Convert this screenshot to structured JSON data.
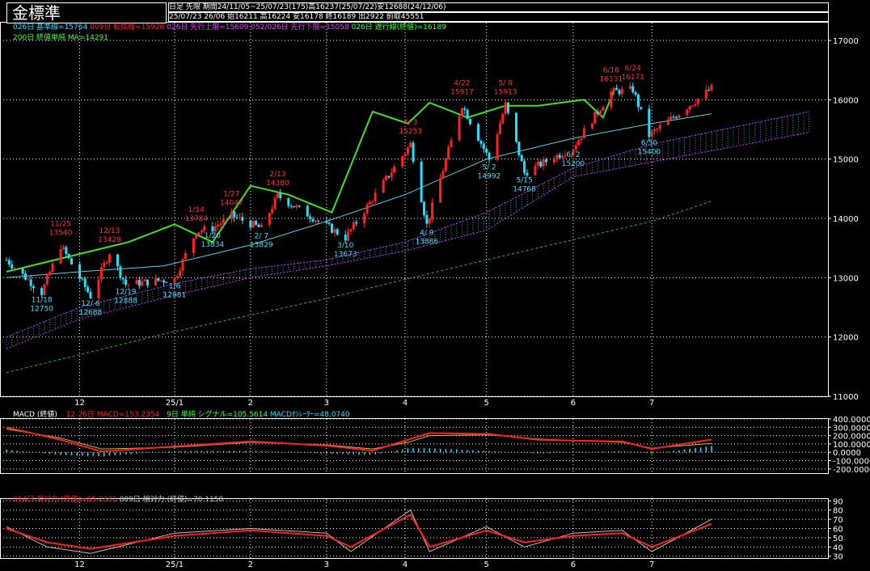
{
  "header": {
    "title": "金標準",
    "period_line": "日足  先限  期間24/11/05~25/07/23(175)高16237(25/07/22)安12688(24/12/06)",
    "quote_line": "25/07/23 26/06 始16211 高16224 安16178 終16189 出2922 前取45551"
  },
  "legend": {
    "base": "026日 基準線=15764",
    "conversion": "009日 転換線=15928",
    "lead1": "026日 先行上限=15609",
    "lead2": "052/026日 先行下限=15058",
    "lag": "026日 遅行線(終値)=16189",
    "ma": "200日 終値単純 MA=14291"
  },
  "macd_legend": {
    "title": "MACD (終値)",
    "macd": "12-26日 MACD=153.2354",
    "signal": "9日 単純 シグナル=105.5614",
    "osc": "MACDｵｼﾚｰﾀｰ=48.0740"
  },
  "rsi_legend": {
    "rsi14": "014日 相対力 (終値)=65.2331",
    "rsi9": "009日 相対力 (終値)=70.1158"
  },
  "x_labels": [
    "12",
    "25/1",
    "2",
    "3",
    "4",
    "5",
    "6",
    "7"
  ],
  "price_ticks": [
    "17000",
    "16000",
    "15000",
    "14000",
    "13000",
    "12000",
    "11000"
  ],
  "macd_ticks": [
    "400.0000",
    "300.0000",
    "200.0000",
    "100.0000",
    "0.0000",
    "-100.0000",
    "-200.0000"
  ],
  "rsi_ticks": [
    "90",
    "80",
    "70",
    "60",
    "50",
    "40",
    "30"
  ],
  "colors": {
    "up": "#ff2020",
    "down": "#20e0ff",
    "lag": "#40e020",
    "ma": "#20c020",
    "base": "#60d0e0",
    "conv": "#c02020",
    "cloud_edge": "#c040ff",
    "cloud_fill": "#40a0c0",
    "macd": "#ff2020",
    "signal": "#c0c040",
    "hist": "#20e0ff",
    "rsi14": "#ff2020",
    "rsi9": "#c0c0c0"
  },
  "chart_data": [
    {
      "type": "candlestick",
      "title": "金標準",
      "ylim": [
        11000,
        17300
      ],
      "x_start": "2024-11-05",
      "x_end": "2025-07-23",
      "x_ticks": [
        "2024-12-02",
        "2025-01-06",
        "2025-02-03",
        "2025-03-03",
        "2025-04-01",
        "2025-05-01",
        "2025-06-02",
        "2025-07-01"
      ],
      "y_ticks": [
        17000,
        16000,
        15000,
        14000,
        13000,
        12000,
        11000
      ],
      "annotations": [
        {
          "date": "2024-11-25",
          "label": "11/25",
          "value": 13540,
          "kind": "high"
        },
        {
          "date": "2024-11-18",
          "label": "11/18",
          "value": 12750,
          "kind": "low"
        },
        {
          "date": "2024-12-13",
          "label": "12/13",
          "value": 13428,
          "kind": "high"
        },
        {
          "date": "2024-12-06",
          "label": "12/ 6",
          "value": 12688,
          "kind": "low"
        },
        {
          "date": "2024-12-19",
          "label": "12/19",
          "value": 12888,
          "kind": "low"
        },
        {
          "date": "2025-01-14",
          "label": "1/14",
          "value": 13784,
          "kind": "high"
        },
        {
          "date": "2025-01-06",
          "label": "1/6",
          "value": 12981,
          "kind": "low"
        },
        {
          "date": "2025-01-27",
          "label": "1/27",
          "value": 14047,
          "kind": "high"
        },
        {
          "date": "2025-01-20",
          "label": "1/20",
          "value": 13834,
          "kind": "low"
        },
        {
          "date": "2025-02-07",
          "label": "2/ 7",
          "value": 13829,
          "kind": "low"
        },
        {
          "date": "2025-02-13",
          "label": "2/13",
          "value": 14380,
          "kind": "high"
        },
        {
          "date": "2025-03-10",
          "label": "3/10",
          "value": 13673,
          "kind": "low"
        },
        {
          "date": "2025-04-03",
          "label": "4/ 3",
          "value": 15253,
          "kind": "high"
        },
        {
          "date": "2025-04-09",
          "label": "4/ 9",
          "value": 13886,
          "kind": "low"
        },
        {
          "date": "2025-04-22",
          "label": "4/22",
          "value": 15917,
          "kind": "high"
        },
        {
          "date": "2025-05-08",
          "label": "5/ 8",
          "value": 15913,
          "kind": "high"
        },
        {
          "date": "2025-05-02",
          "label": "5/ 2",
          "value": 14992,
          "kind": "low"
        },
        {
          "date": "2025-05-15",
          "label": "5/15",
          "value": 14768,
          "kind": "low"
        },
        {
          "date": "2025-06-02",
          "label": "6/ 2",
          "value": 15200,
          "kind": "low"
        },
        {
          "date": "2025-06-16",
          "label": "6/16",
          "value": 16131,
          "kind": "high"
        },
        {
          "date": "2025-06-24",
          "label": "6/24",
          "value": 16171,
          "kind": "high"
        },
        {
          "date": "2025-06-30",
          "label": "6/30",
          "value": 15400,
          "kind": "low"
        }
      ],
      "series": [
        {
          "name": "200日 終値単純 MA",
          "points": [
            [
              "2024-11-05",
              11400
            ],
            [
              "2025-01-02",
              12050
            ],
            [
              "2025-03-03",
              12650
            ],
            [
              "2025-05-01",
              13300
            ],
            [
              "2025-07-01",
              13950
            ],
            [
              "2025-07-23",
              14291
            ]
          ]
        },
        {
          "name": "026日 遅行線(終値)",
          "points": [
            [
              "2024-11-05",
              13100
            ],
            [
              "2024-12-02",
              13400
            ],
            [
              "2024-12-20",
              13600
            ],
            [
              "2025-01-06",
              13900
            ],
            [
              "2025-01-20",
              13600
            ],
            [
              "2025-02-03",
              14550
            ],
            [
              "2025-02-17",
              14400
            ],
            [
              "2025-03-05",
              14100
            ],
            [
              "2025-03-20",
              15800
            ],
            [
              "2025-04-02",
              15600
            ],
            [
              "2025-04-10",
              15950
            ],
            [
              "2025-04-24",
              15700
            ],
            [
              "2025-05-08",
              15900
            ],
            [
              "2025-05-20",
              15900
            ],
            [
              "2025-06-06",
              16000
            ],
            [
              "2025-06-13",
              15700
            ],
            [
              "2025-06-17",
              16150
            ]
          ]
        },
        {
          "name": "026日 基準線",
          "points": [
            [
              "2024-11-05",
              13000
            ],
            [
              "2024-12-02",
              13100
            ],
            [
              "2025-01-02",
              13200
            ],
            [
              "2025-02-03",
              13550
            ],
            [
              "2025-03-03",
              13950
            ],
            [
              "2025-04-01",
              14400
            ],
            [
              "2025-05-01",
              15000
            ],
            [
              "2025-06-02",
              15350
            ],
            [
              "2025-07-01",
              15600
            ],
            [
              "2025-07-23",
              15764
            ]
          ]
        },
        {
          "name": "026日 先行上限",
          "points": [
            [
              "2024-11-05",
              12000
            ],
            [
              "2024-12-02",
              12500
            ],
            [
              "2025-01-06",
              12900
            ],
            [
              "2025-02-03",
              13150
            ],
            [
              "2025-03-03",
              13300
            ],
            [
              "2025-04-01",
              13600
            ],
            [
              "2025-05-01",
              14100
            ],
            [
              "2025-06-02",
              14850
            ],
            [
              "2025-07-01",
              15250
            ],
            [
              "2025-08-28",
              15800
            ]
          ]
        },
        {
          "name": "052/026日 先行下限",
          "points": [
            [
              "2024-11-05",
              11800
            ],
            [
              "2024-12-02",
              12300
            ],
            [
              "2025-01-06",
              12700
            ],
            [
              "2025-02-03",
              13000
            ],
            [
              "2025-03-03",
              13200
            ],
            [
              "2025-04-01",
              13450
            ],
            [
              "2025-05-01",
              13800
            ],
            [
              "2025-06-02",
              14700
            ],
            [
              "2025-07-01",
              14950
            ],
            [
              "2025-08-28",
              15450
            ]
          ]
        }
      ]
    },
    {
      "type": "line",
      "title": "MACD (終値)",
      "ylim": [
        -250,
        400
      ],
      "series": [
        {
          "name": "12-26日 MACD",
          "points": [
            [
              "2024-11-05",
              300
            ],
            [
              "2024-11-25",
              150
            ],
            [
              "2024-12-10",
              10
            ],
            [
              "2025-01-06",
              70
            ],
            [
              "2025-02-03",
              130
            ],
            [
              "2025-03-03",
              80
            ],
            [
              "2025-03-20",
              20
            ],
            [
              "2025-04-02",
              150
            ],
            [
              "2025-04-10",
              230
            ],
            [
              "2025-05-02",
              220
            ],
            [
              "2025-05-20",
              150
            ],
            [
              "2025-06-02",
              140
            ],
            [
              "2025-06-20",
              130
            ],
            [
              "2025-07-01",
              40
            ],
            [
              "2025-07-23",
              153
            ]
          ]
        },
        {
          "name": "9日 単純 シグナル",
          "points": [
            [
              "2024-11-05",
              280
            ],
            [
              "2024-11-25",
              170
            ],
            [
              "2024-12-10",
              40
            ],
            [
              "2025-01-06",
              60
            ],
            [
              "2025-02-03",
              120
            ],
            [
              "2025-03-03",
              90
            ],
            [
              "2025-03-20",
              40
            ],
            [
              "2025-04-02",
              120
            ],
            [
              "2025-04-10",
              200
            ],
            [
              "2025-05-02",
              210
            ],
            [
              "2025-05-20",
              160
            ],
            [
              "2025-06-02",
              140
            ],
            [
              "2025-06-20",
              120
            ],
            [
              "2025-07-01",
              50
            ],
            [
              "2025-07-23",
              106
            ]
          ]
        }
      ]
    },
    {
      "type": "line",
      "title": "相対力",
      "ylim": [
        28,
        92
      ],
      "series": [
        {
          "name": "014日 相対力 (終値)",
          "points": [
            [
              "2024-11-05",
              60
            ],
            [
              "2024-11-20",
              45
            ],
            [
              "2024-12-06",
              38
            ],
            [
              "2025-01-06",
              52
            ],
            [
              "2025-02-03",
              58
            ],
            [
              "2025-03-03",
              52
            ],
            [
              "2025-03-12",
              40
            ],
            [
              "2025-04-03",
              75
            ],
            [
              "2025-04-10",
              40
            ],
            [
              "2025-05-01",
              58
            ],
            [
              "2025-05-15",
              45
            ],
            [
              "2025-06-02",
              52
            ],
            [
              "2025-06-20",
              55
            ],
            [
              "2025-07-01",
              40
            ],
            [
              "2025-07-23",
              65
            ]
          ]
        },
        {
          "name": "009日 相対力 (終値)",
          "points": [
            [
              "2024-11-05",
              62
            ],
            [
              "2024-11-20",
              40
            ],
            [
              "2024-12-06",
              33
            ],
            [
              "2025-01-06",
              55
            ],
            [
              "2025-02-03",
              60
            ],
            [
              "2025-03-03",
              55
            ],
            [
              "2025-03-12",
              35
            ],
            [
              "2025-04-03",
              80
            ],
            [
              "2025-04-10",
              35
            ],
            [
              "2025-05-01",
              62
            ],
            [
              "2025-05-15",
              40
            ],
            [
              "2025-06-02",
              55
            ],
            [
              "2025-06-20",
              58
            ],
            [
              "2025-07-01",
              35
            ],
            [
              "2025-07-23",
              70
            ]
          ]
        }
      ]
    }
  ]
}
